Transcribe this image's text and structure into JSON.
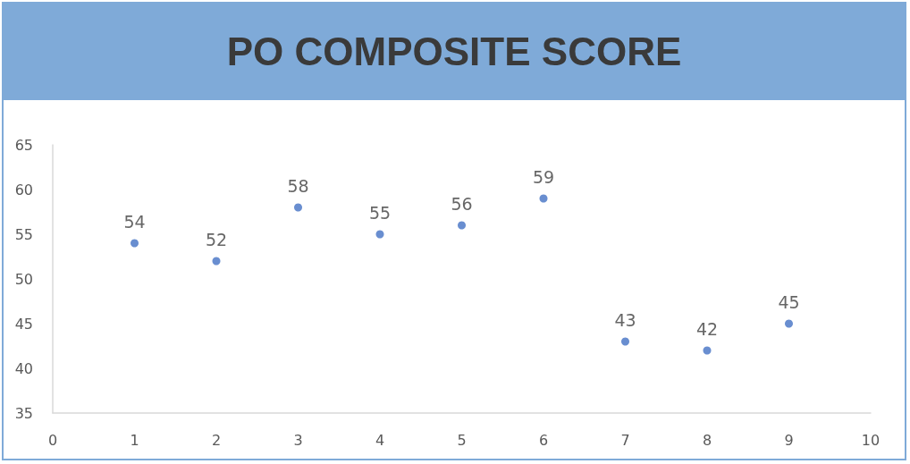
{
  "chart_data": {
    "type": "scatter",
    "title": "PO COMPOSITE SCORE",
    "x": [
      1,
      2,
      3,
      4,
      5,
      6,
      7,
      8,
      9
    ],
    "series": [
      {
        "color": "#4472c4",
        "values": [
          54,
          52,
          58,
          55,
          56,
          59,
          43,
          42,
          45
        ]
      }
    ],
    "xlim": [
      0,
      10
    ],
    "xticks": [
      0,
      1,
      2,
      3,
      4,
      5,
      6,
      7,
      8,
      9,
      10
    ],
    "ylim": [
      35,
      65
    ],
    "yticks": [
      35,
      40,
      45,
      50,
      55,
      60,
      65
    ],
    "grid": false,
    "marker": "circle",
    "data_labels": true
  }
}
